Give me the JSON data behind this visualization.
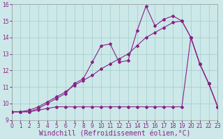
{
  "background_color": "#cce8e8",
  "grid_color": "#a0cccc",
  "line_color": "#882288",
  "xlim": [
    0,
    23
  ],
  "ylim": [
    9,
    16
  ],
  "xticks": [
    0,
    1,
    2,
    3,
    4,
    5,
    6,
    7,
    8,
    9,
    10,
    11,
    12,
    13,
    14,
    15,
    16,
    17,
    18,
    19,
    20,
    21,
    22,
    23
  ],
  "yticks": [
    9,
    10,
    11,
    12,
    13,
    14,
    15,
    16
  ],
  "xlabel": "Windchill (Refroidissement éolien,°C)",
  "s1_x": [
    0,
    1,
    2,
    3,
    4,
    5,
    6,
    7,
    8,
    9,
    10,
    11,
    12,
    13,
    14,
    15,
    16,
    17,
    18,
    19,
    20,
    21,
    22,
    23
  ],
  "s1_y": [
    9.5,
    9.5,
    9.5,
    9.7,
    10.0,
    10.3,
    10.6,
    11.2,
    11.5,
    12.5,
    13.5,
    13.6,
    12.5,
    12.6,
    14.4,
    15.9,
    14.7,
    15.1,
    15.3,
    15.0,
    14.0,
    12.4,
    11.2,
    9.8
  ],
  "s2_x": [
    0,
    1,
    2,
    3,
    4,
    5,
    6,
    7,
    8,
    9,
    10,
    11,
    12,
    13,
    14,
    15,
    16,
    17,
    18,
    19,
    20,
    21,
    22,
    23
  ],
  "s2_y": [
    9.5,
    9.5,
    9.6,
    9.8,
    10.1,
    10.4,
    10.7,
    11.1,
    11.4,
    11.7,
    12.1,
    12.4,
    12.7,
    13.0,
    13.5,
    14.0,
    14.3,
    14.6,
    14.9,
    15.0,
    14.0,
    12.4,
    11.2,
    9.8
  ],
  "s3_x": [
    0,
    1,
    2,
    3,
    4,
    5,
    6,
    7,
    8,
    9,
    10,
    11,
    12,
    13,
    14,
    15,
    16,
    17,
    18,
    19,
    20,
    21,
    22,
    23
  ],
  "s3_y": [
    9.5,
    9.5,
    9.5,
    9.6,
    9.7,
    9.8,
    9.8,
    9.8,
    9.8,
    9.8,
    9.8,
    9.8,
    9.8,
    9.8,
    9.8,
    9.8,
    9.8,
    9.8,
    9.8,
    9.8,
    14.0,
    12.4,
    11.2,
    9.8
  ],
  "tick_fontsize": 5.5,
  "xlabel_fontsize": 7,
  "marker_size": 2,
  "line_width": 0.8
}
